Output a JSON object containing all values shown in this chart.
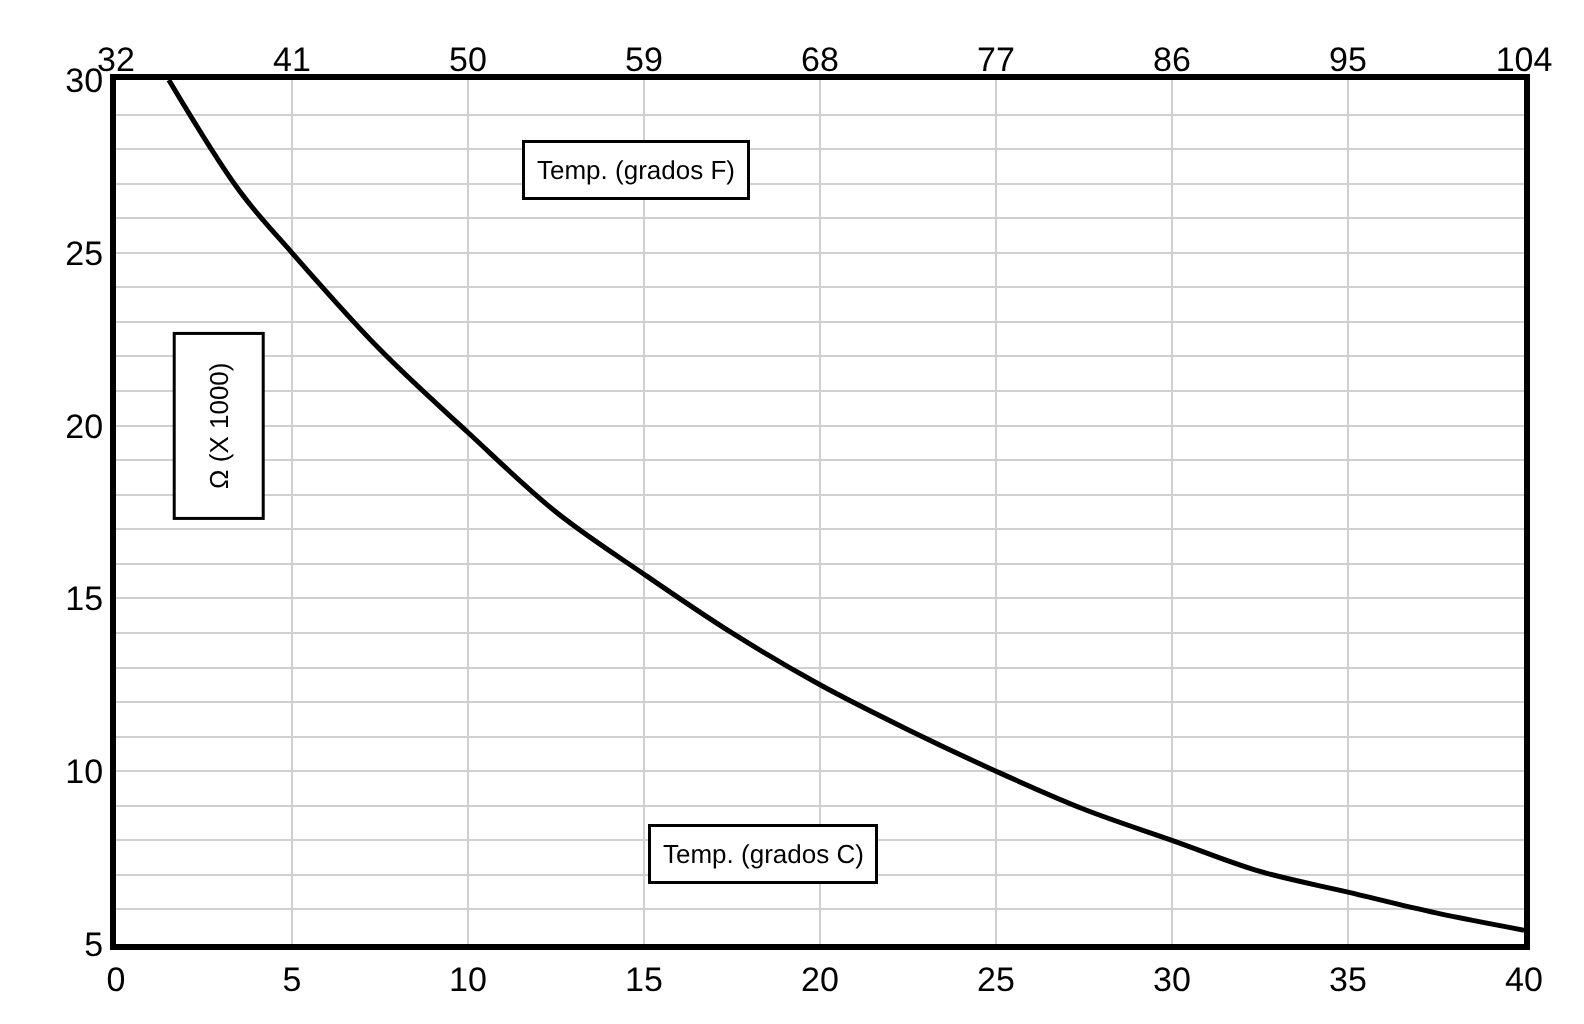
{
  "chart_data": {
    "type": "line",
    "xlabel": "Temp. (grados C)",
    "x2label": "Temp. (grados F)",
    "ylabel": "Ω (X 1000)",
    "x": [
      1.5,
      3.5,
      5,
      7.5,
      10,
      12.5,
      15,
      17.5,
      20,
      22.5,
      25,
      27.5,
      30,
      32.5,
      35,
      37.5,
      40
    ],
    "series": [
      {
        "color": "#000000",
        "values": [
          30,
          26.8,
          25,
          22.2,
          19.8,
          17.5,
          15.7,
          14,
          12.5,
          11.2,
          10,
          8.9,
          8,
          7.1,
          6.5,
          5.9,
          5.4
        ]
      }
    ],
    "xlim": [
      0,
      40
    ],
    "xticks": [
      0,
      5,
      10,
      15,
      20,
      25,
      30,
      35,
      40
    ],
    "x2lim": [
      32,
      104
    ],
    "x2ticks": [
      32,
      41,
      50,
      59,
      68,
      77,
      86,
      95,
      104
    ],
    "ylim": [
      5,
      30
    ],
    "yticks": [
      5,
      {
        "value": 6,
        "label": null
      },
      {
        "value": 7,
        "label": null
      },
      {
        "value": 8,
        "label": null
      },
      {
        "value": 9,
        "label": null
      },
      10,
      {
        "value": 11,
        "label": null
      },
      {
        "value": 12,
        "label": null
      },
      {
        "value": 13,
        "label": null
      },
      {
        "value": 14,
        "label": null
      },
      15,
      {
        "value": 16,
        "label": null
      },
      {
        "value": 17,
        "label": null
      },
      {
        "value": 18,
        "label": null
      },
      {
        "value": 19,
        "label": null
      },
      20,
      {
        "value": 21,
        "label": null
      },
      {
        "value": 22,
        "label": null
      },
      {
        "value": 23,
        "label": null
      },
      {
        "value": 24,
        "label": null
      },
      25,
      {
        "value": 26,
        "label": null
      },
      {
        "value": 27,
        "label": null
      },
      {
        "value": 28,
        "label": null
      },
      {
        "value": 29,
        "label": null
      },
      30
    ],
    "grid": true,
    "marker": "none",
    "line_style": "solid"
  }
}
